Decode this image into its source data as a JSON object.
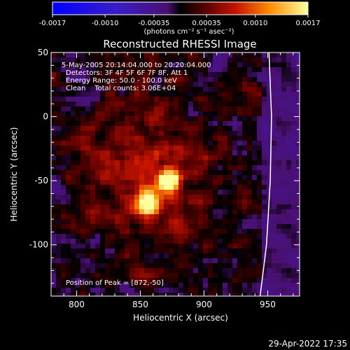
{
  "chart_data": {
    "type": "heatmap",
    "title": "Reconstructed RHESSI Image",
    "xlabel": "Heliocentric X (arcsec)",
    "ylabel": "Heliocentric Y (arcsec)",
    "xlim": [
      780,
      975
    ],
    "ylim": [
      -140,
      50
    ],
    "x_ticks": [
      800,
      850,
      900,
      950
    ],
    "y_ticks": [
      50,
      0,
      -50,
      -100
    ],
    "colorbar": {
      "min": -0.0017,
      "max": 0.0017,
      "ticks": [
        -0.0017,
        -0.001,
        -0.00035,
        0.00035,
        0.001,
        0.0017
      ],
      "tick_labels": [
        "-0.0017",
        "-0.0010",
        "-0.00035",
        "0.00035",
        "0.0010",
        "0.0017"
      ],
      "unit_label": "(photons cm⁻² s⁻¹ asec⁻²)"
    },
    "annotations": [
      "5-May-2005 20:14:04.000 to 20:20:04.000",
      "Detectors: 3F 4F 5F 6F 7F 8F, Att 1",
      "Energy Range: 50.0 - 100.0 keV",
      "Clean    Total counts: 3.06E+04"
    ],
    "peak_label": "Position of Peak = [872,-50]",
    "sources": [
      {
        "x": 872,
        "y": -50,
        "relative_intensity": 1.0
      },
      {
        "x": 856,
        "y": -68,
        "relative_intensity": 0.95
      }
    ],
    "limb_curve": [
      [
        944,
        -140
      ],
      [
        949,
        -100
      ],
      [
        952,
        -50
      ],
      [
        953,
        0
      ],
      [
        951,
        50
      ]
    ],
    "colors": {
      "background": "#000000",
      "text": "#ffffff",
      "limb": "#ffffff"
    }
  },
  "footer": {
    "date": "29-Apr-2022 17:35"
  }
}
